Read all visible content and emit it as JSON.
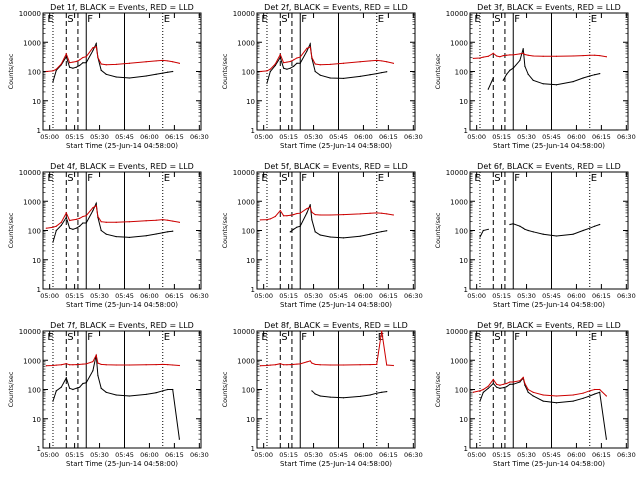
{
  "common": {
    "ylabel": "Counts/sec",
    "xlabel": "Start Time (25-Jun-14 04:58:00)",
    "x_ticks": [
      "05:00",
      "05:15",
      "05:30",
      "05:45",
      "06:00",
      "06:15",
      "06:30"
    ],
    "y_ticks": [
      "1",
      "10",
      "100",
      "1000",
      "10000"
    ],
    "ylim": [
      1,
      10000
    ],
    "xlim_minutes": [
      -2,
      93
    ],
    "black_label": "BLACK = Events",
    "red_label": "RED = LLD",
    "colors": {
      "events": "#000000",
      "lld": "#cc0000"
    }
  },
  "chart_data": [
    {
      "type": "line",
      "title": "Det 1f, BLACK = Events, RED = LLD",
      "letters": [
        "E",
        "S",
        "F",
        "E"
      ],
      "x": [
        0,
        4,
        6,
        9,
        12,
        14,
        16,
        18,
        20,
        22,
        24,
        28,
        30,
        31,
        33,
        36,
        42,
        50,
        60,
        66,
        70,
        73,
        76,
        80
      ],
      "series": [
        {
          "name": "BLACK = Events",
          "values": [
            null,
            45,
            110,
            170,
            320,
            140,
            130,
            140,
            160,
            200,
            200,
            520,
            900,
            300,
            110,
            80,
            65,
            60,
            70,
            80,
            88,
            95,
            100,
            null
          ]
        },
        {
          "name": "RED = LLD",
          "values": [
            100,
            105,
            120,
            180,
            400,
            200,
            210,
            220,
            250,
            300,
            320,
            650,
            700,
            300,
            180,
            170,
            175,
            190,
            215,
            230,
            240,
            230,
            215,
            190
          ]
        }
      ],
      "vlines": {
        "dotted": [
          4,
          70
        ],
        "dashed": [
          12,
          19
        ],
        "solid": [
          24,
          47
        ]
      }
    },
    {
      "type": "line",
      "title": "Det 2f, BLACK = Events, RED = LLD",
      "letters": [
        "E",
        "S",
        "F",
        "E"
      ],
      "x": [
        0,
        4,
        6,
        9,
        12,
        14,
        16,
        18,
        20,
        22,
        24,
        28,
        30,
        31,
        33,
        36,
        42,
        50,
        60,
        66,
        70,
        73,
        76,
        80
      ],
      "series": [
        {
          "name": "BLACK = Events",
          "values": [
            null,
            40,
            100,
            160,
            300,
            130,
            120,
            130,
            150,
            190,
            190,
            500,
            880,
            280,
            100,
            75,
            60,
            58,
            68,
            78,
            85,
            92,
            98,
            null
          ]
        },
        {
          "name": "RED = LLD",
          "values": [
            100,
            105,
            120,
            180,
            380,
            200,
            210,
            220,
            250,
            290,
            310,
            620,
            680,
            300,
            180,
            170,
            175,
            190,
            215,
            230,
            240,
            230,
            215,
            190
          ]
        }
      ],
      "vlines": {
        "dotted": [
          4,
          70
        ],
        "dashed": [
          12,
          19
        ],
        "solid": [
          24,
          47
        ]
      }
    },
    {
      "type": "line",
      "title": "Det 3f, BLACK = Events, RED = LLD",
      "letters": [
        "E",
        "S",
        "F",
        "E"
      ],
      "x": [
        0,
        4,
        6,
        9,
        12,
        14,
        16,
        18,
        20,
        22,
        24,
        28,
        30,
        31,
        33,
        36,
        42,
        50,
        60,
        66,
        70,
        73,
        76,
        80
      ],
      "series": [
        {
          "name": "BLACK = Events",
          "values": [
            null,
            null,
            null,
            25,
            60,
            null,
            null,
            50,
            80,
            110,
            130,
            240,
            600,
            150,
            80,
            50,
            38,
            35,
            45,
            60,
            70,
            78,
            85,
            null
          ]
        },
        {
          "name": "RED = LLD",
          "values": [
            280,
            290,
            310,
            330,
            420,
            340,
            320,
            350,
            360,
            370,
            370,
            400,
            420,
            380,
            360,
            340,
            330,
            330,
            340,
            350,
            360,
            360,
            350,
            320
          ]
        }
      ],
      "vlines": {
        "dotted": [
          4,
          70
        ],
        "dashed": [
          12,
          19
        ],
        "solid": [
          24,
          47
        ]
      }
    },
    {
      "type": "line",
      "title": "Det 4f, BLACK = Events, RED = LLD",
      "letters": [
        "E",
        "S",
        "F",
        "E"
      ],
      "x": [
        0,
        4,
        6,
        9,
        12,
        14,
        16,
        18,
        20,
        22,
        24,
        28,
        30,
        31,
        33,
        36,
        42,
        50,
        60,
        66,
        70,
        73,
        76,
        80
      ],
      "series": [
        {
          "name": "BLACK = Events",
          "values": [
            null,
            40,
            100,
            150,
            280,
            120,
            110,
            120,
            140,
            180,
            180,
            480,
            850,
            280,
            100,
            75,
            62,
            58,
            66,
            76,
            84,
            90,
            95,
            null
          ]
        },
        {
          "name": "RED = LLD",
          "values": [
            120,
            130,
            140,
            190,
            400,
            220,
            230,
            240,
            260,
            300,
            320,
            600,
            700,
            300,
            200,
            190,
            190,
            200,
            215,
            225,
            235,
            225,
            210,
            190
          ]
        }
      ],
      "vlines": {
        "dotted": [
          4,
          70
        ],
        "dashed": [
          12,
          19
        ],
        "solid": [
          24,
          47
        ]
      }
    },
    {
      "type": "line",
      "title": "Det 5f, BLACK = Events, RED = LLD",
      "letters": [
        "E",
        "S",
        "F",
        "E"
      ],
      "x": [
        0,
        4,
        6,
        9,
        12,
        14,
        16,
        18,
        20,
        22,
        24,
        28,
        30,
        31,
        33,
        36,
        42,
        50,
        60,
        66,
        70,
        73,
        76,
        80
      ],
      "series": [
        {
          "name": "BLACK = Events",
          "values": [
            null,
            null,
            null,
            null,
            null,
            null,
            null,
            90,
            110,
            130,
            140,
            400,
            760,
            230,
            90,
            70,
            60,
            56,
            64,
            75,
            85,
            92,
            98,
            null
          ]
        },
        {
          "name": "RED = LLD",
          "values": [
            230,
            235,
            250,
            300,
            480,
            320,
            320,
            330,
            350,
            380,
            390,
            560,
            620,
            420,
            350,
            340,
            340,
            350,
            370,
            390,
            400,
            390,
            370,
            340
          ]
        }
      ],
      "vlines": {
        "dotted": [
          4,
          70
        ],
        "dashed": [
          12,
          19
        ],
        "solid": [
          24,
          47
        ]
      }
    },
    {
      "type": "line",
      "title": "Det 6f, BLACK = Events, RED = LLD",
      "letters": [
        "E",
        "S",
        "F",
        "E"
      ],
      "x": [
        0,
        4,
        6,
        9,
        12,
        14,
        16,
        18,
        20,
        22,
        24,
        28,
        30,
        31,
        33,
        36,
        42,
        50,
        60,
        66,
        70,
        73,
        76,
        80
      ],
      "series": [
        {
          "name": "BLACK = Events",
          "values": [
            null,
            60,
            100,
            110,
            null,
            null,
            null,
            null,
            null,
            160,
            170,
            140,
            120,
            110,
            100,
            90,
            75,
            65,
            75,
            100,
            120,
            140,
            160,
            null
          ]
        },
        {
          "name": "RED = LLD",
          "values": [
            null,
            null,
            null,
            null,
            null,
            null,
            null,
            null,
            null,
            null,
            null,
            null,
            null,
            null,
            null,
            null,
            null,
            null,
            null,
            null,
            null,
            null,
            null,
            null
          ]
        }
      ],
      "vlines": {
        "dotted": [
          4,
          70
        ],
        "dashed": [
          12,
          19
        ],
        "solid": [
          24,
          47
        ]
      }
    },
    {
      "type": "line",
      "title": "Det 7f, BLACK = Events, RED = LLD",
      "letters": [
        "E",
        "S",
        "F",
        "E"
      ],
      "x": [
        0,
        4,
        6,
        9,
        12,
        14,
        16,
        18,
        20,
        22,
        24,
        28,
        30,
        31,
        33,
        36,
        42,
        50,
        60,
        66,
        70,
        73,
        76,
        80
      ],
      "series": [
        {
          "name": "BLACK = Events",
          "values": [
            null,
            40,
            90,
            120,
            250,
            110,
            100,
            110,
            120,
            160,
            170,
            440,
            1500,
            300,
            110,
            80,
            65,
            60,
            68,
            78,
            90,
            100,
            100,
            2
          ]
        },
        {
          "name": "RED = LLD",
          "values": [
            650,
            660,
            680,
            700,
            760,
            700,
            700,
            710,
            720,
            740,
            750,
            900,
            1500,
            800,
            720,
            700,
            690,
            690,
            700,
            710,
            720,
            710,
            690,
            660
          ]
        }
      ],
      "vlines": {
        "dotted": [
          4,
          70
        ],
        "dashed": [
          12,
          19
        ],
        "solid": [
          24,
          47
        ]
      }
    },
    {
      "type": "line",
      "title": "Det 8f, BLACK = Events, RED = LLD",
      "letters": [
        "E",
        "S",
        "F",
        "E"
      ],
      "x": [
        0,
        4,
        6,
        9,
        12,
        14,
        16,
        18,
        20,
        22,
        24,
        28,
        30,
        31,
        33,
        36,
        42,
        50,
        60,
        66,
        70,
        73,
        76,
        80
      ],
      "series": [
        {
          "name": "BLACK = Events",
          "values": [
            null,
            null,
            null,
            null,
            null,
            null,
            null,
            null,
            null,
            null,
            null,
            null,
            null,
            90,
            70,
            60,
            55,
            52,
            58,
            65,
            75,
            80,
            85,
            null
          ]
        },
        {
          "name": "RED = LLD",
          "values": [
            650,
            660,
            680,
            700,
            760,
            700,
            700,
            710,
            720,
            740,
            750,
            880,
            950,
            800,
            720,
            700,
            690,
            690,
            700,
            710,
            720,
            10000,
            690,
            660
          ]
        }
      ],
      "vlines": {
        "dotted": [
          4,
          70
        ],
        "dashed": [
          12,
          19
        ],
        "solid": [
          24,
          47
        ]
      }
    },
    {
      "type": "line",
      "title": "Det 9f, BLACK = Events, RED = LLD",
      "letters": [
        "E",
        "S",
        "F",
        "E"
      ],
      "x": [
        0,
        4,
        6,
        9,
        12,
        14,
        16,
        18,
        20,
        22,
        24,
        28,
        30,
        31,
        33,
        36,
        42,
        50,
        60,
        66,
        70,
        73,
        76,
        80
      ],
      "series": [
        {
          "name": "BLACK = Events",
          "values": [
            null,
            40,
            80,
            110,
            160,
            120,
            110,
            115,
            125,
            150,
            150,
            180,
            250,
            140,
            80,
            60,
            40,
            35,
            40,
            50,
            60,
            70,
            80,
            2
          ]
        },
        {
          "name": "RED = LLD",
          "values": [
            80,
            90,
            100,
            130,
            220,
            150,
            140,
            150,
            160,
            180,
            180,
            200,
            260,
            160,
            100,
            80,
            65,
            60,
            65,
            75,
            90,
            100,
            100,
            60
          ]
        }
      ],
      "vlines": {
        "dotted": [
          4,
          70
        ],
        "dashed": [
          12,
          19
        ],
        "solid": [
          24,
          47
        ]
      }
    }
  ]
}
